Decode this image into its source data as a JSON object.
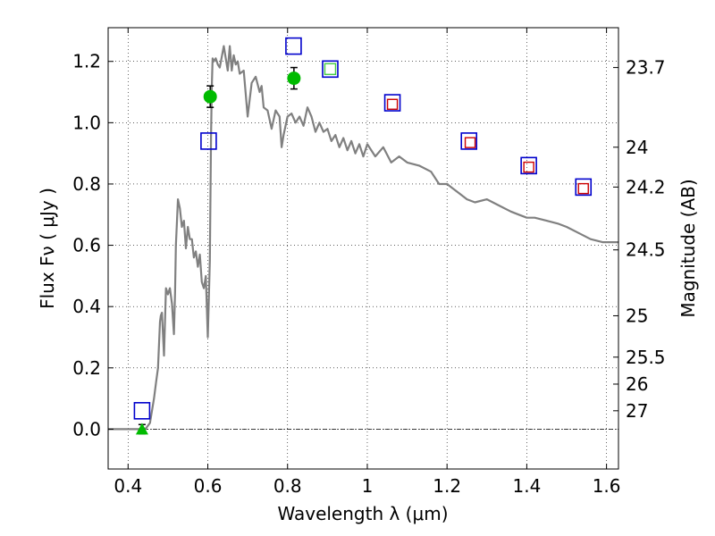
{
  "chart_data": {
    "type": "scatter",
    "xlabel": "Wavelength  λ (μm)",
    "ylabel": "Flux  Fν  ( μJy )",
    "ylabel_right": "Magnitude (AB)",
    "xlim": [
      0.35,
      1.63
    ],
    "ylim": [
      -0.13,
      1.31
    ],
    "grid": true,
    "x_ticks": [
      0.4,
      0.6,
      0.8,
      1.0,
      1.2,
      1.4,
      1.6
    ],
    "x_tick_labels": [
      "0.4",
      "0.6",
      "0.8",
      "1",
      "1.2",
      "1.4",
      "1.6"
    ],
    "y_ticks": [
      0.0,
      0.2,
      0.4,
      0.6,
      0.8,
      1.0,
      1.2
    ],
    "y_tick_labels": [
      "0.0",
      "0.2",
      "0.4",
      "0.6",
      "0.8",
      "1.0",
      "1.2"
    ],
    "mag_ticks": [
      {
        "flux": 1.18,
        "label": "23.7"
      },
      {
        "flux": 0.92,
        "label": "24"
      },
      {
        "flux": 0.79,
        "label": "24.2"
      },
      {
        "flux": 0.585,
        "label": "24.5"
      },
      {
        "flux": 0.37,
        "label": "25"
      },
      {
        "flux": 0.235,
        "label": "25.5"
      },
      {
        "flux": 0.147,
        "label": "26"
      },
      {
        "flux": 0.06,
        "label": "27"
      }
    ],
    "colors": {
      "model": "#808080",
      "green": "#00bb00",
      "blue": "#0000cc",
      "red": "#cc0000",
      "lightgreen": "#44cc44",
      "black": "#000000"
    },
    "series": [
      {
        "marker": "line",
        "color": "#808080",
        "x": [
          0.35,
          0.44,
          0.445,
          0.455,
          0.465,
          0.47,
          0.475,
          0.48,
          0.482,
          0.485,
          0.49,
          0.495,
          0.5,
          0.505,
          0.51,
          0.515,
          0.518,
          0.52,
          0.525,
          0.53,
          0.535,
          0.54,
          0.545,
          0.55,
          0.555,
          0.56,
          0.565,
          0.57,
          0.575,
          0.58,
          0.585,
          0.59,
          0.595,
          0.6,
          0.605,
          0.608,
          0.61,
          0.612,
          0.615,
          0.62,
          0.625,
          0.63,
          0.64,
          0.65,
          0.655,
          0.66,
          0.665,
          0.67,
          0.675,
          0.68,
          0.69,
          0.7,
          0.71,
          0.72,
          0.73,
          0.735,
          0.74,
          0.75,
          0.76,
          0.77,
          0.78,
          0.785,
          0.79,
          0.8,
          0.81,
          0.82,
          0.83,
          0.84,
          0.85,
          0.86,
          0.87,
          0.88,
          0.89,
          0.9,
          0.91,
          0.92,
          0.93,
          0.94,
          0.95,
          0.96,
          0.97,
          0.98,
          0.99,
          1.0,
          1.02,
          1.04,
          1.06,
          1.08,
          1.1,
          1.13,
          1.16,
          1.18,
          1.2,
          1.23,
          1.25,
          1.27,
          1.3,
          1.33,
          1.36,
          1.38,
          1.4,
          1.42,
          1.45,
          1.48,
          1.5,
          1.53,
          1.56,
          1.59,
          1.61,
          1.63
        ],
        "y": [
          0.0,
          0.0,
          0.003,
          0.02,
          0.1,
          0.15,
          0.2,
          0.35,
          0.37,
          0.38,
          0.24,
          0.46,
          0.44,
          0.46,
          0.41,
          0.31,
          0.45,
          0.6,
          0.75,
          0.72,
          0.66,
          0.68,
          0.59,
          0.66,
          0.62,
          0.62,
          0.56,
          0.58,
          0.53,
          0.57,
          0.48,
          0.46,
          0.5,
          0.3,
          0.55,
          0.95,
          1.12,
          1.21,
          1.2,
          1.21,
          1.19,
          1.18,
          1.25,
          1.17,
          1.25,
          1.17,
          1.22,
          1.19,
          1.2,
          1.16,
          1.17,
          1.02,
          1.13,
          1.15,
          1.1,
          1.12,
          1.05,
          1.04,
          0.98,
          1.04,
          1.02,
          0.92,
          0.96,
          1.02,
          1.03,
          1.0,
          1.02,
          0.99,
          1.05,
          1.02,
          0.97,
          1.0,
          0.97,
          0.98,
          0.94,
          0.96,
          0.92,
          0.95,
          0.91,
          0.94,
          0.9,
          0.93,
          0.89,
          0.93,
          0.89,
          0.92,
          0.87,
          0.89,
          0.87,
          0.86,
          0.84,
          0.8,
          0.8,
          0.77,
          0.75,
          0.74,
          0.75,
          0.73,
          0.71,
          0.7,
          0.69,
          0.69,
          0.68,
          0.67,
          0.66,
          0.64,
          0.62,
          0.61,
          0.61,
          0.61
        ]
      },
      {
        "marker": "circle",
        "color": "#00bb00",
        "x": [
          0.606,
          0.816
        ],
        "y": [
          1.085,
          1.145
        ],
        "yerr": [
          0.035,
          0.035
        ]
      },
      {
        "marker": "triangle",
        "color": "#00bb00",
        "x": [
          0.435
        ],
        "y": [
          0.0
        ],
        "yerr": [
          0.015
        ]
      },
      {
        "marker": "open-square-blue",
        "color": "#0000cc",
        "x": [
          0.435,
          0.602,
          0.815,
          1.063,
          1.255,
          1.405,
          1.542
        ],
        "y": [
          0.06,
          0.94,
          1.25,
          1.065,
          0.94,
          0.86,
          0.79
        ]
      },
      {
        "marker": "open-square-green",
        "color": "#44cc44",
        "x": [
          0.907
        ],
        "y": [
          1.175
        ]
      },
      {
        "marker": "open-square-red",
        "color": "#cc0000",
        "x": [
          1.063,
          1.258,
          1.405,
          1.542
        ],
        "y": [
          1.06,
          0.935,
          0.855,
          0.785
        ]
      },
      {
        "marker": "open-square-blue-large",
        "color": "#0000cc",
        "x": [
          0.907
        ],
        "y": [
          1.175
        ]
      }
    ]
  }
}
